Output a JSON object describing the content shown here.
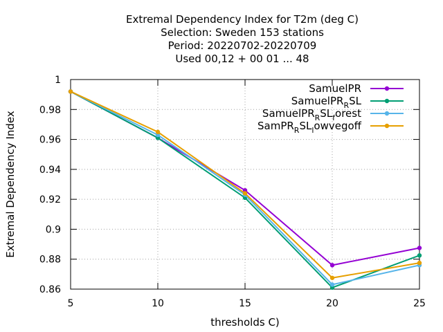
{
  "chart_data": {
    "type": "line",
    "title_lines": [
      "Extremal Dependency Index  for T2m (deg C)",
      "Selection: Sweden    153 stations",
      "Period: 20220702-20220709",
      "Used  00,12  + 00 01 ... 48"
    ],
    "xlabel": "thresholds C)",
    "ylabel": "Extremal Dependency Index",
    "x": [
      5,
      10,
      15,
      20,
      25
    ],
    "xlim": [
      5,
      25
    ],
    "ylim": [
      0.86,
      1.0
    ],
    "xticks": [
      "5",
      "10",
      "15",
      "20",
      "25"
    ],
    "yticks": [
      "0.86",
      "0.88",
      "0.9",
      "0.92",
      "0.94",
      "0.96",
      "0.98",
      "1"
    ],
    "grid": true,
    "legend_position": "top-right",
    "series": [
      {
        "name": "SamuelPR",
        "legend": {
          "base": "SamuelPR",
          "sub": "",
          "mid": "",
          "sub2": "",
          "tail": ""
        },
        "color": "#9400d3",
        "values": [
          0.992,
          0.961,
          0.926,
          0.876,
          0.8875
        ]
      },
      {
        "name": "SamuelPR_RSL",
        "legend": {
          "base": "SamuelPR",
          "sub": "R",
          "mid": "SL",
          "sub2": "",
          "tail": ""
        },
        "color": "#009e73",
        "values": [
          0.992,
          0.961,
          0.921,
          0.861,
          0.8825
        ]
      },
      {
        "name": "SamuelPR_RSL_forest",
        "legend": {
          "base": "SamuelPR",
          "sub": "R",
          "mid": "SL",
          "sub2": "f",
          "tail": "orest"
        },
        "color": "#56b4e9",
        "values": [
          0.992,
          0.963,
          0.923,
          0.863,
          0.876
        ]
      },
      {
        "name": "SamPR_RSL_lowvegoff",
        "legend": {
          "base": "SamPR",
          "sub": "R",
          "mid": "SL",
          "sub2": "l",
          "tail": "owvegoff"
        },
        "color": "#e69f00",
        "values": [
          0.992,
          0.965,
          0.924,
          0.8675,
          0.8775
        ]
      }
    ]
  }
}
